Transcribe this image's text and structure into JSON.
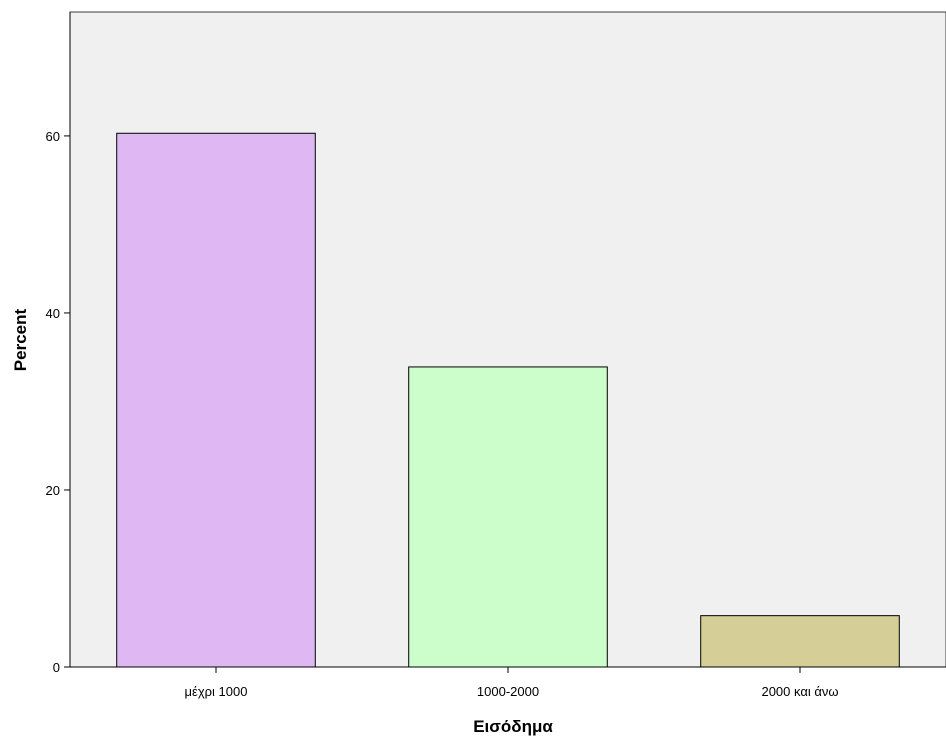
{
  "chart_data": {
    "type": "bar",
    "categories": [
      "μέχρι 1000",
      "1000-2000",
      "2000 και άνω"
    ],
    "values": [
      60.3,
      33.9,
      5.8
    ],
    "colors": [
      "#dfb8f3",
      "#ccfecc",
      "#d5cf97"
    ],
    "xlabel": "Εισόδημα",
    "ylabel": "Percent",
    "ylim": [
      0,
      74
    ],
    "yticks": [
      0,
      20,
      40,
      60
    ],
    "grid": false,
    "plot_background": "#f0f0f0"
  }
}
